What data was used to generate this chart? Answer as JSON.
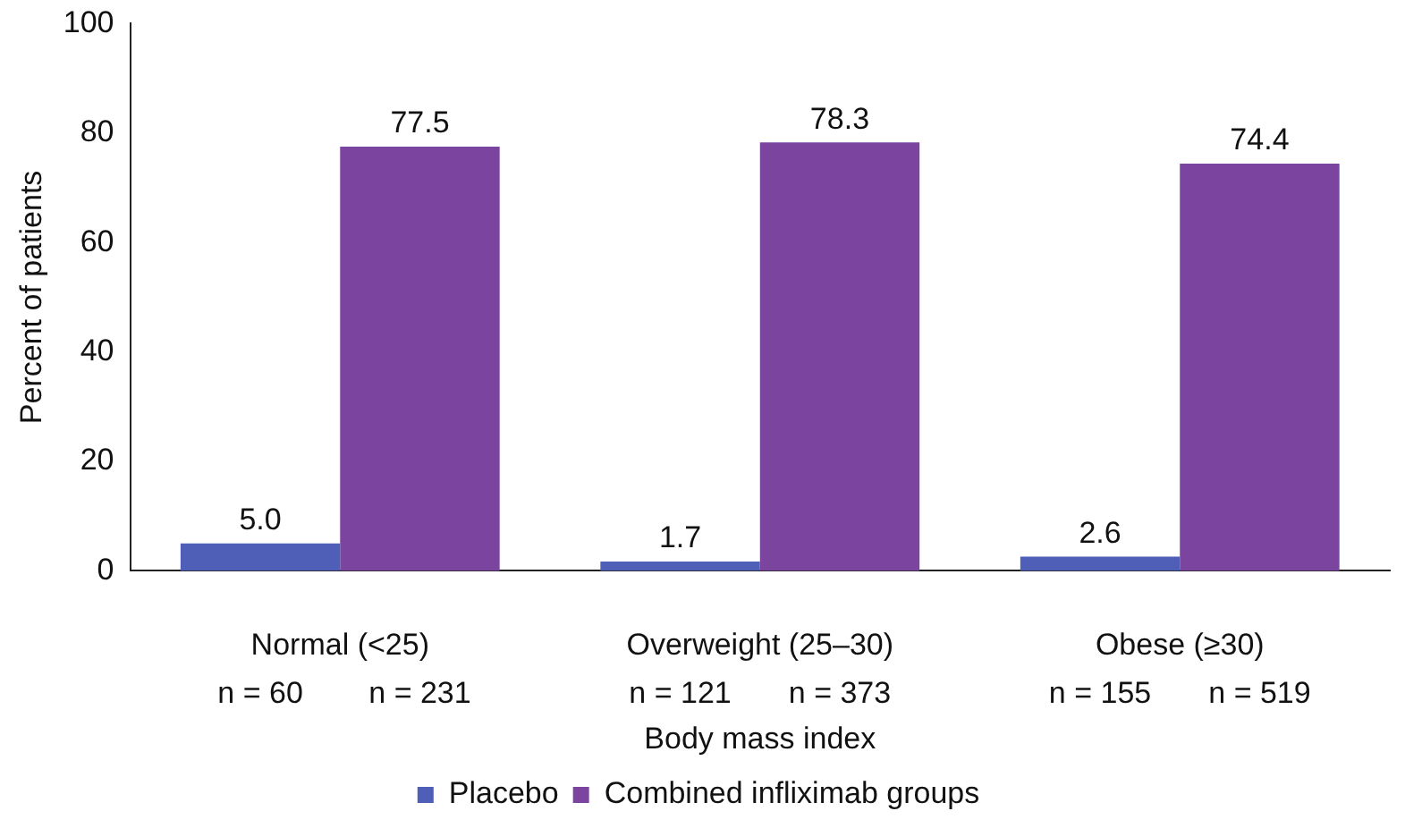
{
  "chart_data": {
    "type": "bar",
    "xlabel": "Body mass index",
    "ylabel": "Percent of patients",
    "categories": [
      "Normal (<25)",
      "Overweight (25–30)",
      "Obese (≥30)"
    ],
    "series": [
      {
        "name": "Placebo",
        "color": "#4f5fb8",
        "values": [
          5.0,
          1.7,
          2.6
        ],
        "value_labels": [
          "5.0",
          "1.7",
          "2.6"
        ]
      },
      {
        "name": "Combined infliximab groups",
        "color": "#7b449f",
        "values": [
          77.5,
          78.3,
          74.4
        ],
        "value_labels": [
          "77.5",
          "78.3",
          "74.4"
        ]
      }
    ],
    "annotations": [
      "n = 60",
      "n = 231",
      "n = 121",
      "n = 373",
      "n = 155",
      "n = 519"
    ],
    "ylim": [
      0,
      100
    ],
    "yticks": [
      0,
      20,
      40,
      60,
      80,
      100
    ],
    "grid": false,
    "legend": "bottom"
  }
}
